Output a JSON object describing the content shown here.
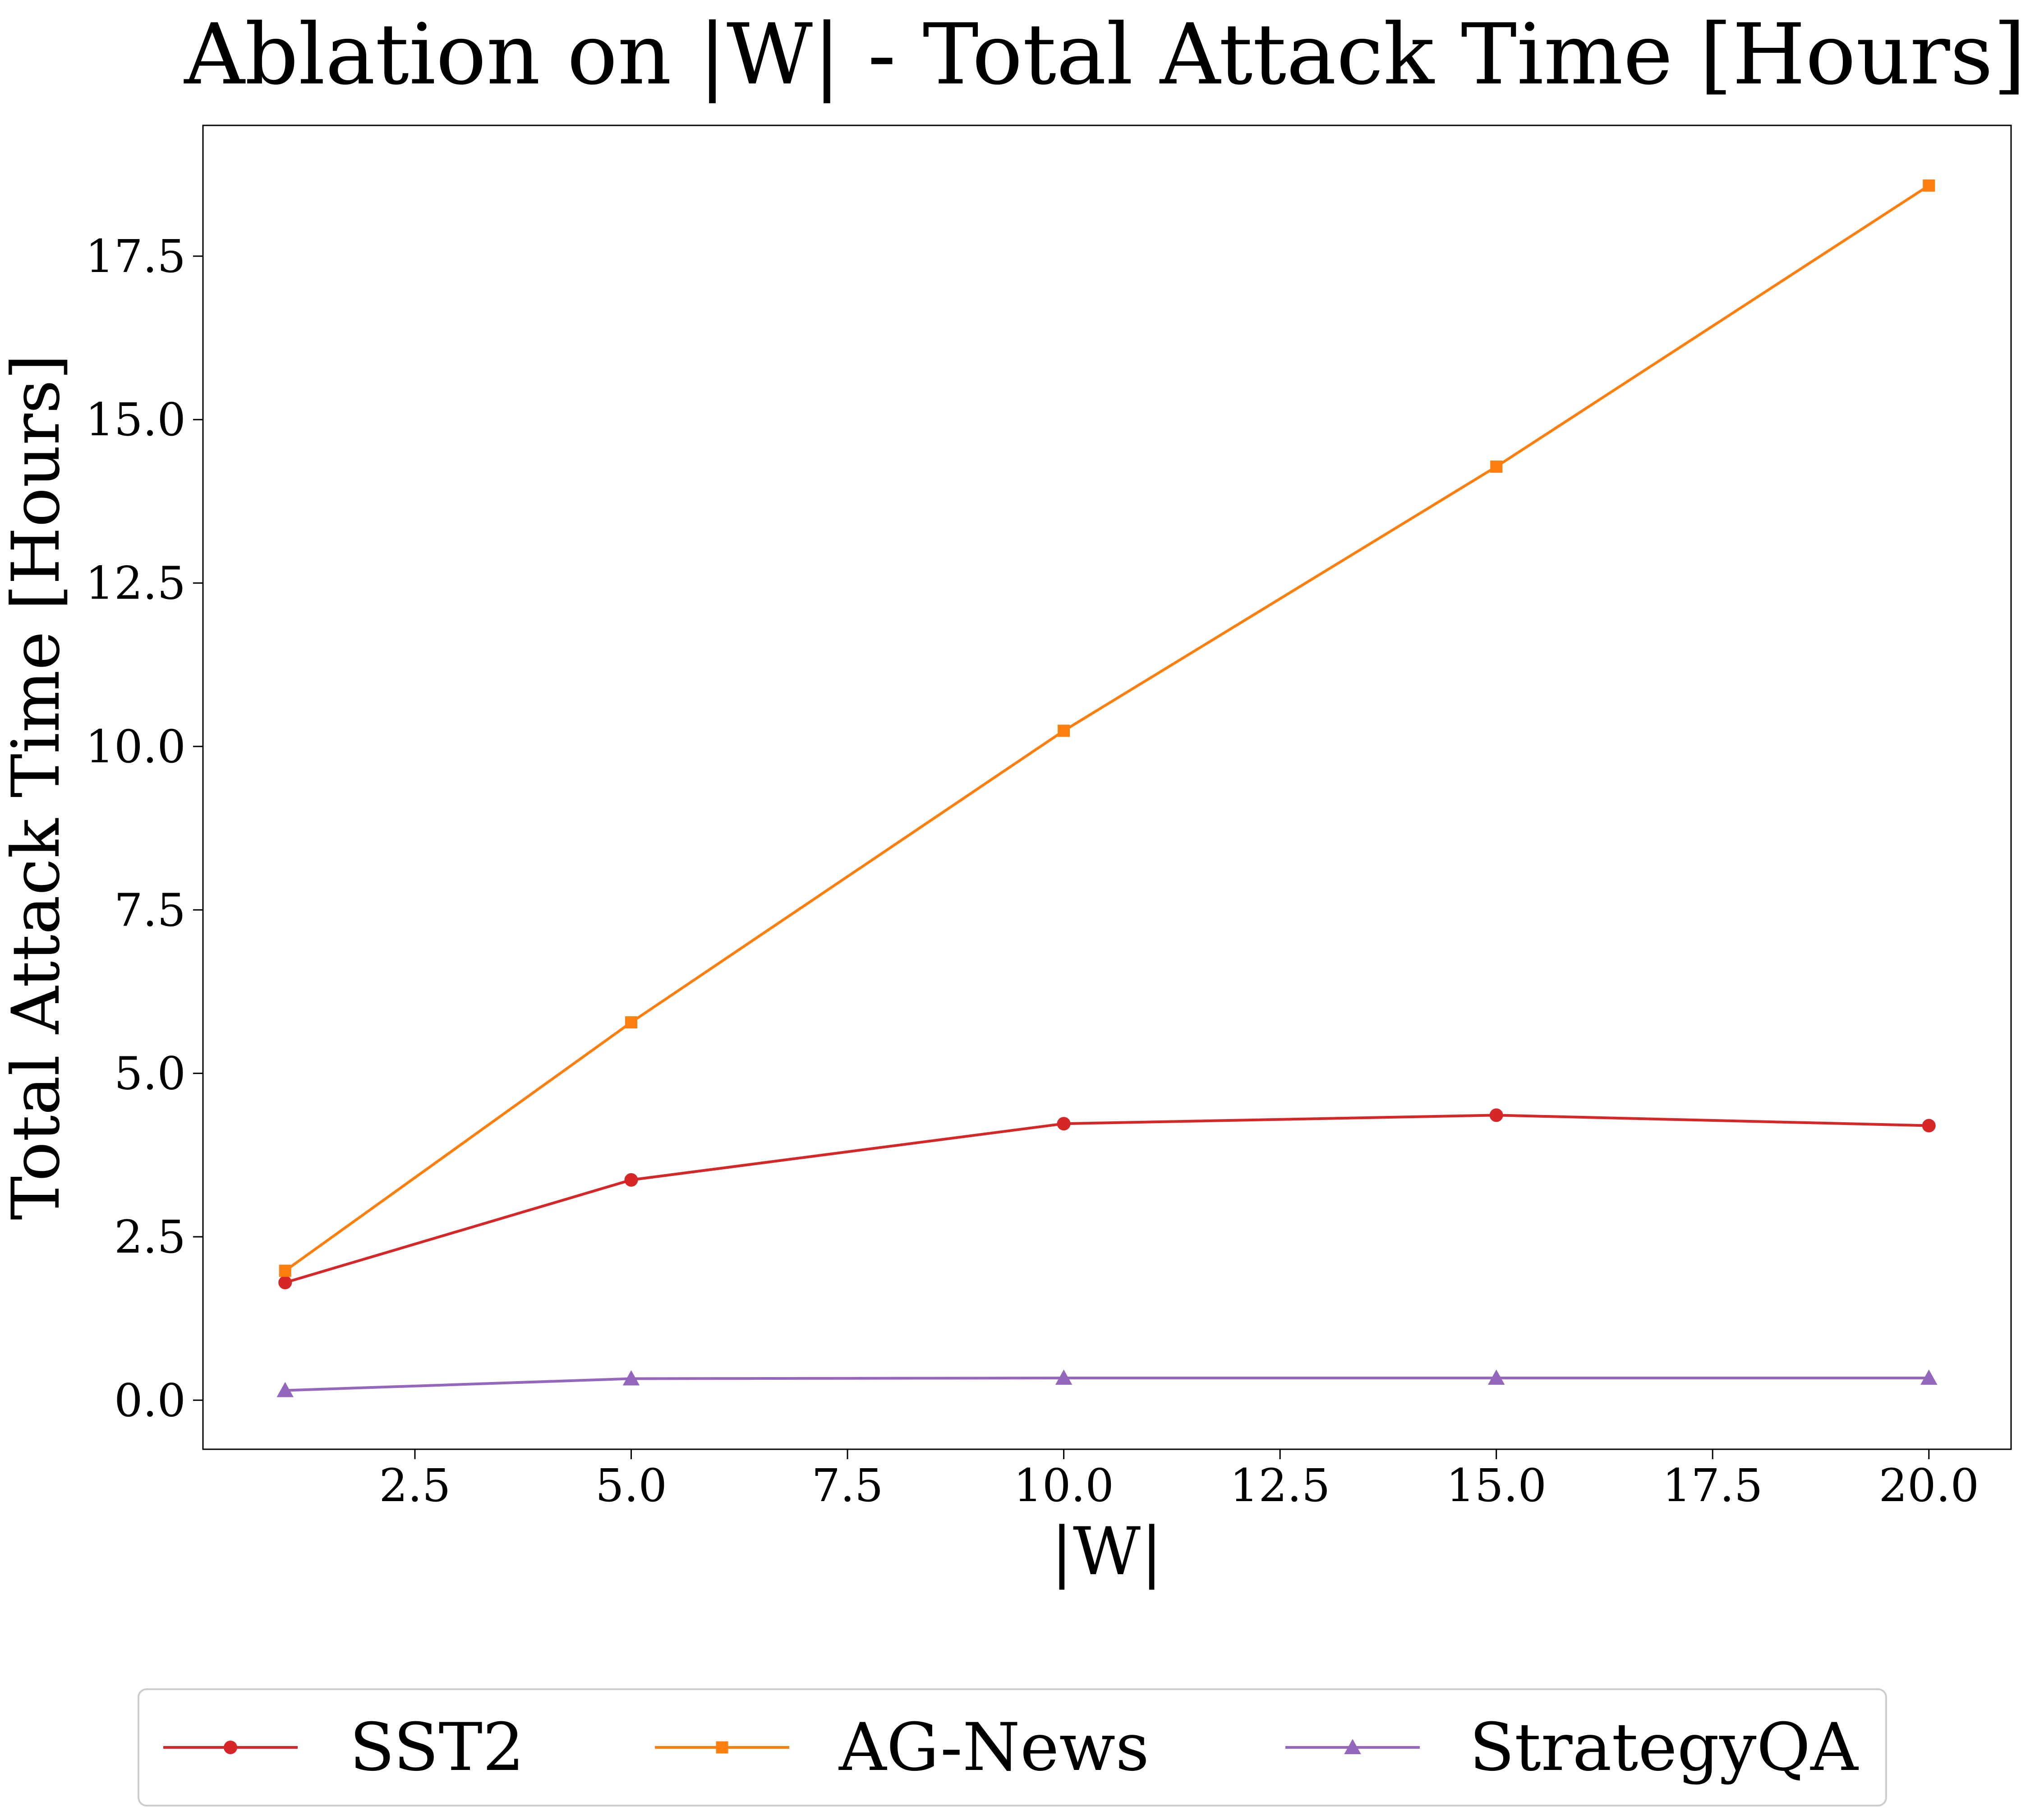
{
  "chart_data": {
    "type": "line",
    "title": "Ablation on |W| - Total Attack Time [Hours]",
    "xlabel": "|W|",
    "ylabel": "Total Attack Time [Hours]",
    "xlim": [
      0.05,
      20.95
    ],
    "ylim": [
      -0.75,
      19.5
    ],
    "x": [
      1,
      5,
      10,
      15,
      20
    ],
    "x_ticks": [
      2.5,
      5.0,
      7.5,
      10.0,
      12.5,
      15.0,
      17.5,
      20.0
    ],
    "y_ticks": [
      0.0,
      2.5,
      5.0,
      7.5,
      10.0,
      12.5,
      15.0,
      17.5
    ],
    "grid": false,
    "legend_position": "bottom-center, below the plot",
    "series": [
      {
        "name": "SST2",
        "color": "#d62728",
        "marker": "circle",
        "values": [
          1.8,
          3.37,
          4.23,
          4.36,
          4.2
        ]
      },
      {
        "name": "AG-News",
        "color": "#ff7f0e",
        "marker": "square",
        "values": [
          1.98,
          5.78,
          10.24,
          14.28,
          18.58
        ]
      },
      {
        "name": "StrategyQA",
        "color": "#9467bd",
        "marker": "triangle",
        "values": [
          0.15,
          0.33,
          0.34,
          0.34,
          0.34
        ]
      }
    ]
  }
}
